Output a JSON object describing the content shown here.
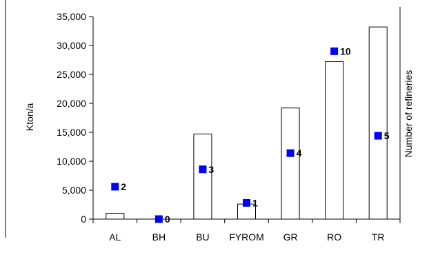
{
  "chart_data": {
    "type": "bar",
    "categories": [
      "AL",
      "BH",
      "BU",
      "FYROM",
      "GR",
      "RO",
      "TR"
    ],
    "ylabel": "Kton/a",
    "y2label": "Number of refineries",
    "ylim": [
      0,
      35000
    ],
    "yticks": [
      "0",
      "5,000",
      "10,000",
      "15,000",
      "20,000",
      "25,000",
      "30,000",
      "35,000"
    ],
    "grid": false,
    "series": [
      {
        "type": "bar",
        "values": [
          1000,
          0,
          14700,
          2600,
          19200,
          27200,
          33200
        ],
        "color": "#ffffff",
        "stroke": "#000000"
      },
      {
        "type": "scatter",
        "values": [
          2,
          0,
          3,
          1,
          4,
          10,
          5
        ],
        "labels": [
          "2",
          "0",
          "3",
          "1",
          "4",
          "10",
          "5"
        ],
        "marker": "square",
        "color": "#0000ff"
      }
    ],
    "marker_y_kton": [
      5600,
      0,
      8600,
      2800,
      11400,
      29000,
      14400
    ]
  }
}
